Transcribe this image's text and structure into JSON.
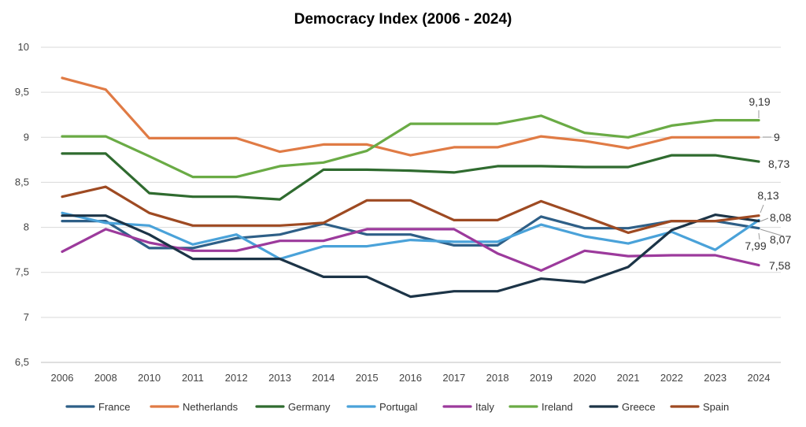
{
  "chart_data": {
    "type": "line",
    "title": "Democracy Index (2006 - 2024)",
    "xlabel": "",
    "ylabel": "",
    "ylim": [
      6.5,
      10
    ],
    "yticks": [
      "6,5",
      "7",
      "7,5",
      "8",
      "8,5",
      "9",
      "9,5",
      "10"
    ],
    "grid": true,
    "legend": "bottom",
    "categories": [
      "2006",
      "2008",
      "2010",
      "2011",
      "2012",
      "2013",
      "2014",
      "2015",
      "2016",
      "2017",
      "2018",
      "2019",
      "2020",
      "2021",
      "2022",
      "2023",
      "2024"
    ],
    "series": [
      {
        "name": "France",
        "color": "#2e5f87",
        "end_label": "7,99",
        "values": [
          8.07,
          8.07,
          7.77,
          7.77,
          7.88,
          7.92,
          8.04,
          7.92,
          7.92,
          7.8,
          7.8,
          8.12,
          7.99,
          7.99,
          8.07,
          8.07,
          7.99
        ]
      },
      {
        "name": "Netherlands",
        "color": "#e07b45",
        "end_label": "9",
        "values": [
          9.66,
          9.53,
          8.99,
          8.99,
          8.99,
          8.84,
          8.92,
          8.92,
          8.8,
          8.89,
          8.89,
          9.01,
          8.96,
          8.88,
          9.0,
          9.0,
          9.0
        ]
      },
      {
        "name": "Germany",
        "color": "#2f6b2f",
        "end_label": "8,73",
        "values": [
          8.82,
          8.82,
          8.38,
          8.34,
          8.34,
          8.31,
          8.64,
          8.64,
          8.63,
          8.61,
          8.68,
          8.68,
          8.67,
          8.67,
          8.8,
          8.8,
          8.73
        ]
      },
      {
        "name": "Portugal",
        "color": "#4aa2d9",
        "end_label": "8,08",
        "values": [
          8.16,
          8.05,
          8.02,
          7.81,
          7.92,
          7.65,
          7.79,
          7.79,
          7.86,
          7.84,
          7.84,
          8.03,
          7.9,
          7.82,
          7.95,
          7.75,
          8.08
        ]
      },
      {
        "name": "Italy",
        "color": "#9c3a9c",
        "end_label": "7,58",
        "values": [
          7.73,
          7.98,
          7.83,
          7.74,
          7.74,
          7.85,
          7.85,
          7.98,
          7.98,
          7.98,
          7.71,
          7.52,
          7.74,
          7.68,
          7.69,
          7.69,
          7.58
        ]
      },
      {
        "name": "Ireland",
        "color": "#6aab45",
        "end_label": "9,19",
        "values": [
          9.01,
          9.01,
          8.79,
          8.56,
          8.56,
          8.68,
          8.72,
          8.85,
          9.15,
          9.15,
          9.15,
          9.24,
          9.05,
          9.0,
          9.13,
          9.19,
          9.19
        ]
      },
      {
        "name": "Greece",
        "color": "#1c3447",
        "end_label": "8,07",
        "values": [
          8.13,
          8.13,
          7.92,
          7.65,
          7.65,
          7.65,
          7.45,
          7.45,
          7.23,
          7.29,
          7.29,
          7.43,
          7.39,
          7.56,
          7.97,
          8.14,
          8.07
        ]
      },
      {
        "name": "Spain",
        "color": "#9e4a22",
        "end_label": "8,13",
        "values": [
          8.34,
          8.45,
          8.16,
          8.02,
          8.02,
          8.02,
          8.05,
          8.3,
          8.3,
          8.08,
          8.08,
          8.29,
          8.12,
          7.94,
          8.07,
          8.07,
          8.13
        ]
      }
    ]
  }
}
